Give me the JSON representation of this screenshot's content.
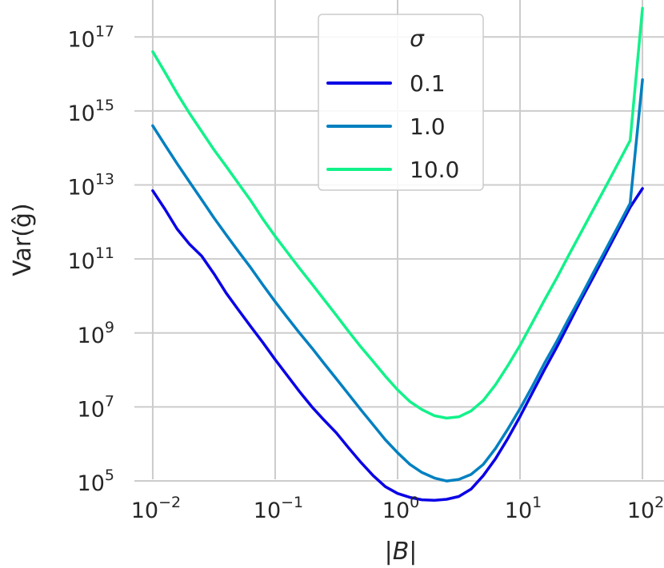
{
  "chart_data": {
    "type": "line",
    "xscale": "log",
    "yscale": "log",
    "xlabel": "|B|",
    "ylabel": "Var(ĝ)",
    "xlim": [
      0.006,
      150
    ],
    "ylim": [
      50000,
      1e+18
    ],
    "grid": true,
    "x_ticks": [
      {
        "base": "10",
        "exp": "−2",
        "value": 0.01
      },
      {
        "base": "10",
        "exp": "−1",
        "value": 0.1
      },
      {
        "base": "10",
        "exp": "0",
        "value": 1
      },
      {
        "base": "10",
        "exp": "1",
        "value": 10
      },
      {
        "base": "10",
        "exp": "2",
        "value": 100
      }
    ],
    "y_ticks": [
      {
        "base": "10",
        "exp": "5",
        "value": 100000.0
      },
      {
        "base": "10",
        "exp": "7",
        "value": 10000000.0
      },
      {
        "base": "10",
        "exp": "9",
        "value": 1000000000.0
      },
      {
        "base": "10",
        "exp": "11",
        "value": 100000000000.0
      },
      {
        "base": "10",
        "exp": "13",
        "value": 10000000000000.0
      },
      {
        "base": "10",
        "exp": "15",
        "value": 1000000000000000.0
      },
      {
        "base": "10",
        "exp": "17",
        "value": 1e+17
      }
    ],
    "legend": {
      "title": "σ",
      "position": "top-center"
    },
    "x": [
      0.01,
      0.0126,
      0.0158,
      0.02,
      0.0251,
      0.0316,
      0.0398,
      0.0501,
      0.0631,
      0.0794,
      0.1,
      0.126,
      0.158,
      0.2,
      0.251,
      0.316,
      0.398,
      0.501,
      0.631,
      0.794,
      1.0,
      1.26,
      1.58,
      2.0,
      2.51,
      3.16,
      3.98,
      5.01,
      6.31,
      7.94,
      10.0,
      12.6,
      15.8,
      20.0,
      25.1,
      31.6,
      39.8,
      50.1,
      63.1,
      79.4,
      100.0
    ],
    "series": [
      {
        "name": "0.1",
        "color": "#0a00e6",
        "values": [
          7000000000000.0,
          2200000000000.0,
          650000000000.0,
          250000000000.0,
          120000000000.0,
          40000000000.0,
          12000000000.0,
          4200000000.0,
          1500000000.0,
          550000000.0,
          190000000.0,
          70000000.0,
          26000000.0,
          10000000.0,
          4400000.0,
          2000000.0,
          780000.0,
          320000.0,
          140000.0,
          70000.0,
          46000.0,
          36000.0,
          31000.0,
          30000.0,
          32000.0,
          38000.0,
          60000.0,
          140000.0,
          400000.0,
          1400000.0,
          5500000.0,
          24000000.0,
          100000000.0,
          420000000.0,
          1800000000.0,
          8000000000.0,
          33000000000.0,
          140000000000.0,
          600000000000.0,
          2500000000000.0,
          8000000000000.0
        ]
      },
      {
        "name": "1.0",
        "color": "#0080c0",
        "values": [
          400000000000000.0,
          120000000000000.0,
          38000000000000.0,
          12000000000000.0,
          4000000000000.0,
          1300000000000.0,
          450000000000.0,
          160000000000.0,
          58000000000.0,
          20000000000.0,
          7000000000.0,
          2600000000.0,
          1000000000.0,
          390000000.0,
          150000000.0,
          58000000.0,
          22000000.0,
          8400000.0,
          3300000.0,
          1300000.0,
          580000.0,
          280000.0,
          170000.0,
          120000.0,
          100000.0,
          110000.0,
          150000.0,
          280000.0,
          760000.0,
          2500000.0,
          9000000.0,
          36000000.0,
          150000000.0,
          600000000.0,
          2500000000.0,
          10000000000.0,
          43000000000.0,
          180000000000.0,
          760000000000.0,
          3200000000000.0,
          7000000000000000.0
        ]
      },
      {
        "name": "10.0",
        "color": "#12f28a",
        "values": [
          4e+16,
          1.1e+16,
          3000000000000000.0,
          860000000000000.0,
          280000000000000.0,
          90000000000000.0,
          32000000000000.0,
          11000000000000.0,
          3800000000000.0,
          1200000000000.0,
          410000000000.0,
          150000000000.0,
          56000000000.0,
          21000000000.0,
          8000000000.0,
          3000000000.0,
          1100000000.0,
          420000000.0,
          170000000.0,
          68000000.0,
          29000000.0,
          14000000.0,
          8500000.0,
          5800000.0,
          5000000.0,
          5400000.0,
          7800000.0,
          15000000.0,
          40000000.0,
          130000000.0,
          460000000.0,
          1900000000.0,
          7600000000.0,
          31000000000.0,
          130000000000.0,
          530000000000.0,
          2200000000000.0,
          9000000000000.0,
          38000000000000.0,
          160000000000000.0,
          6e+17
        ]
      }
    ]
  }
}
